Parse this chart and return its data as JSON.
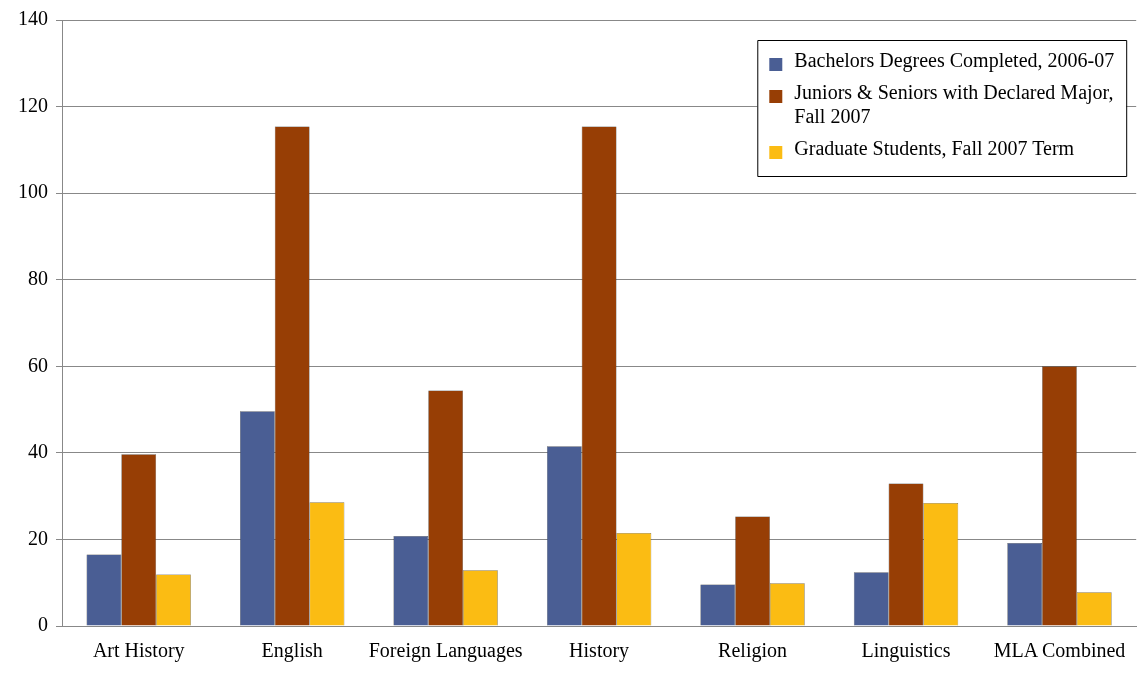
{
  "chart_data": {
    "type": "bar",
    "categories": [
      "Art History",
      "English",
      "Foreign Languages",
      "History",
      "Religion",
      "Linguistics",
      "MLA Combined"
    ],
    "series": [
      {
        "name": "Bachelors Degrees Completed, 2006-07",
        "color": "#4a5e94",
        "values": [
          16.5,
          49.6,
          20.8,
          41.5,
          9.6,
          12.4,
          19.2
        ]
      },
      {
        "name": "Juniors & Seniors with Declared Major, Fall 2007",
        "color": "#973e05",
        "values": [
          39.7,
          115.4,
          54.4,
          115.4,
          25.3,
          32.9,
          60
        ]
      },
      {
        "name": "Graduate Students, Fall 2007 Term",
        "color": "#fbbc13",
        "values": [
          11.9,
          28.6,
          12.9,
          21.5,
          9.9,
          28.4,
          7.8
        ]
      }
    ],
    "ylim": [
      0,
      140
    ],
    "yticks": [
      0,
      20,
      40,
      60,
      80,
      100,
      120,
      140
    ],
    "grid": "y",
    "legend": "top right"
  }
}
